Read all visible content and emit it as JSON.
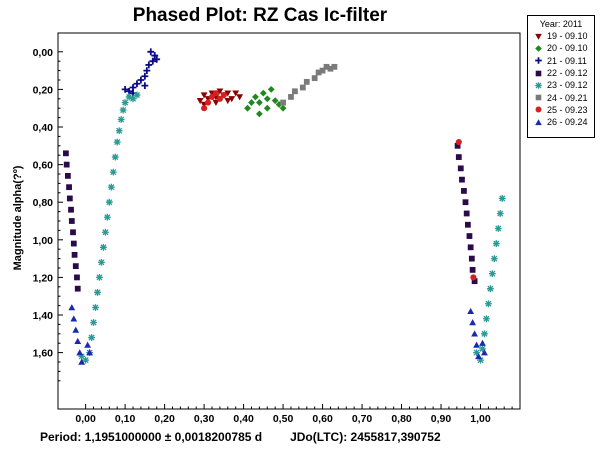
{
  "chart_data": {
    "type": "scatter",
    "title": "Phased Plot: RZ Cas Ic-filter",
    "ylabel": "Magnitude alpha(?º)",
    "xlabel": "",
    "x_ticks": [
      "0,00",
      "0,10",
      "0,20",
      "0,30",
      "0,40",
      "0,50",
      "0,60",
      "0,70",
      "0,80",
      "0,90",
      "1,00"
    ],
    "y_ticks": [
      "0,00",
      "0,20",
      "0,40",
      "0,60",
      "0,80",
      "1,00",
      "1,20",
      "1,40",
      "1,60"
    ],
    "xlim": [
      -0.07,
      1.1
    ],
    "ylim": [
      -0.1,
      1.9
    ],
    "y_inverted": true,
    "legend": {
      "title": "Year: 2011",
      "placement": "outside-top-right",
      "entries": [
        {
          "label": "19 - 09.10",
          "color": "#8b0000",
          "marker": "triangle-down"
        },
        {
          "label": "20 - 09.10",
          "color": "#1e8a1e",
          "marker": "diamond"
        },
        {
          "label": "21 - 09.11",
          "color": "#0a0a8a",
          "marker": "plus"
        },
        {
          "label": "22 - 09.12",
          "color": "#2a0a4a",
          "marker": "square"
        },
        {
          "label": "23 - 09.12",
          "color": "#2a9a94",
          "marker": "asterisk"
        },
        {
          "label": "24 - 09.21",
          "color": "#7a7a7a",
          "marker": "square"
        },
        {
          "label": "25 - 09.23",
          "color": "#d42020",
          "marker": "circle"
        },
        {
          "label": "26 - 09.24",
          "color": "#1a2ab0",
          "marker": "triangle-up"
        }
      ]
    },
    "series": [
      {
        "name": "19 - 09.10",
        "points": [
          [
            0.29,
            0.26
          ],
          [
            0.3,
            0.23
          ],
          [
            0.31,
            0.25
          ],
          [
            0.32,
            0.22
          ],
          [
            0.33,
            0.24
          ],
          [
            0.34,
            0.21
          ],
          [
            0.35,
            0.23
          ],
          [
            0.36,
            0.22
          ],
          [
            0.37,
            0.25
          ],
          [
            0.38,
            0.22
          ],
          [
            0.3,
            0.28
          ],
          [
            0.33,
            0.27
          ],
          [
            0.36,
            0.26
          ],
          [
            0.39,
            0.24
          ]
        ]
      },
      {
        "name": "20 - 09.10",
        "points": [
          [
            0.41,
            0.3
          ],
          [
            0.42,
            0.27
          ],
          [
            0.43,
            0.24
          ],
          [
            0.44,
            0.27
          ],
          [
            0.45,
            0.22
          ],
          [
            0.46,
            0.25
          ],
          [
            0.47,
            0.2
          ],
          [
            0.48,
            0.26
          ],
          [
            0.49,
            0.28
          ],
          [
            0.5,
            0.3
          ],
          [
            0.44,
            0.33
          ],
          [
            0.46,
            0.3
          ]
        ]
      },
      {
        "name": "21 - 09.11",
        "points": [
          [
            0.1,
            0.2
          ],
          [
            0.11,
            0.21
          ],
          [
            0.12,
            0.19
          ],
          [
            0.13,
            0.17
          ],
          [
            0.14,
            0.15
          ],
          [
            0.15,
            0.13
          ],
          [
            0.155,
            0.1
          ],
          [
            0.16,
            0.07
          ],
          [
            0.17,
            0.05
          ],
          [
            0.175,
            0.02
          ],
          [
            0.18,
            0.04
          ],
          [
            0.165,
            0.0
          ],
          [
            0.15,
            0.18
          ],
          [
            0.12,
            0.22
          ]
        ]
      },
      {
        "name": "22 - 09.12",
        "points": [
          [
            -0.05,
            0.54
          ],
          [
            -0.048,
            0.6
          ],
          [
            -0.045,
            0.66
          ],
          [
            -0.042,
            0.72
          ],
          [
            -0.04,
            0.78
          ],
          [
            -0.037,
            0.84
          ],
          [
            -0.035,
            0.9
          ],
          [
            -0.032,
            0.96
          ],
          [
            -0.03,
            1.02
          ],
          [
            -0.028,
            1.08
          ],
          [
            -0.025,
            1.14
          ],
          [
            -0.022,
            1.2
          ],
          [
            -0.02,
            1.26
          ],
          [
            0.942,
            0.5
          ],
          [
            0.945,
            0.56
          ],
          [
            0.95,
            0.62
          ],
          [
            0.953,
            0.68
          ],
          [
            0.958,
            0.74
          ],
          [
            0.962,
            0.8
          ],
          [
            0.965,
            0.86
          ],
          [
            0.968,
            0.92
          ],
          [
            0.972,
            0.98
          ],
          [
            0.975,
            1.04
          ],
          [
            0.978,
            1.1
          ],
          [
            0.98,
            1.16
          ],
          [
            0.985,
            1.22
          ]
        ]
      },
      {
        "name": "23 - 09.12",
        "points": [
          [
            -0.01,
            1.62
          ],
          [
            0.0,
            1.64
          ],
          [
            0.01,
            1.6
          ],
          [
            0.015,
            1.52
          ],
          [
            0.02,
            1.44
          ],
          [
            0.025,
            1.36
          ],
          [
            0.03,
            1.28
          ],
          [
            0.035,
            1.2
          ],
          [
            0.04,
            1.12
          ],
          [
            0.045,
            1.04
          ],
          [
            0.05,
            0.96
          ],
          [
            0.055,
            0.88
          ],
          [
            0.06,
            0.8
          ],
          [
            0.065,
            0.72
          ],
          [
            0.07,
            0.64
          ],
          [
            0.075,
            0.56
          ],
          [
            0.08,
            0.48
          ],
          [
            0.085,
            0.42
          ],
          [
            0.09,
            0.36
          ],
          [
            0.095,
            0.31
          ],
          [
            0.1,
            0.27
          ],
          [
            0.11,
            0.24
          ],
          [
            0.12,
            0.25
          ],
          [
            0.13,
            0.23
          ],
          [
            0.99,
            1.6
          ],
          [
            1.0,
            1.64
          ],
          [
            1.005,
            1.58
          ],
          [
            1.01,
            1.5
          ],
          [
            1.015,
            1.42
          ],
          [
            1.02,
            1.34
          ],
          [
            1.025,
            1.26
          ],
          [
            1.03,
            1.18
          ],
          [
            1.035,
            1.1
          ],
          [
            1.04,
            1.02
          ],
          [
            1.045,
            0.94
          ],
          [
            1.05,
            0.86
          ],
          [
            1.055,
            0.78
          ]
        ]
      },
      {
        "name": "24 - 09.21",
        "points": [
          [
            0.5,
            0.27
          ],
          [
            0.52,
            0.24
          ],
          [
            0.53,
            0.21
          ],
          [
            0.55,
            0.19
          ],
          [
            0.56,
            0.16
          ],
          [
            0.58,
            0.14
          ],
          [
            0.59,
            0.11
          ],
          [
            0.6,
            0.1
          ],
          [
            0.61,
            0.08
          ],
          [
            0.62,
            0.09
          ],
          [
            0.63,
            0.08
          ]
        ]
      },
      {
        "name": "25 - 09.23",
        "points": [
          [
            0.3,
            0.3
          ],
          [
            0.31,
            0.27
          ],
          [
            0.32,
            0.24
          ],
          [
            0.33,
            0.22
          ],
          [
            0.34,
            0.25
          ],
          [
            0.35,
            0.23
          ],
          [
            0.945,
            0.48
          ],
          [
            0.982,
            1.2
          ]
        ]
      },
      {
        "name": "26 - 09.24",
        "points": [
          [
            -0.035,
            1.36
          ],
          [
            -0.03,
            1.42
          ],
          [
            -0.025,
            1.48
          ],
          [
            -0.02,
            1.54
          ],
          [
            -0.015,
            1.6
          ],
          [
            -0.01,
            1.65
          ],
          [
            0.005,
            1.56
          ],
          [
            0.01,
            1.6
          ],
          [
            0.975,
            1.38
          ],
          [
            0.98,
            1.44
          ],
          [
            0.985,
            1.5
          ],
          [
            0.99,
            1.56
          ],
          [
            0.995,
            1.62
          ],
          [
            1.005,
            1.55
          ],
          [
            1.01,
            1.6
          ]
        ]
      }
    ]
  },
  "footer": {
    "period": "Period: 1,1951000000 ± 0,0018200785 d",
    "jdo": "JDo(LTC): 2455817,390752"
  }
}
